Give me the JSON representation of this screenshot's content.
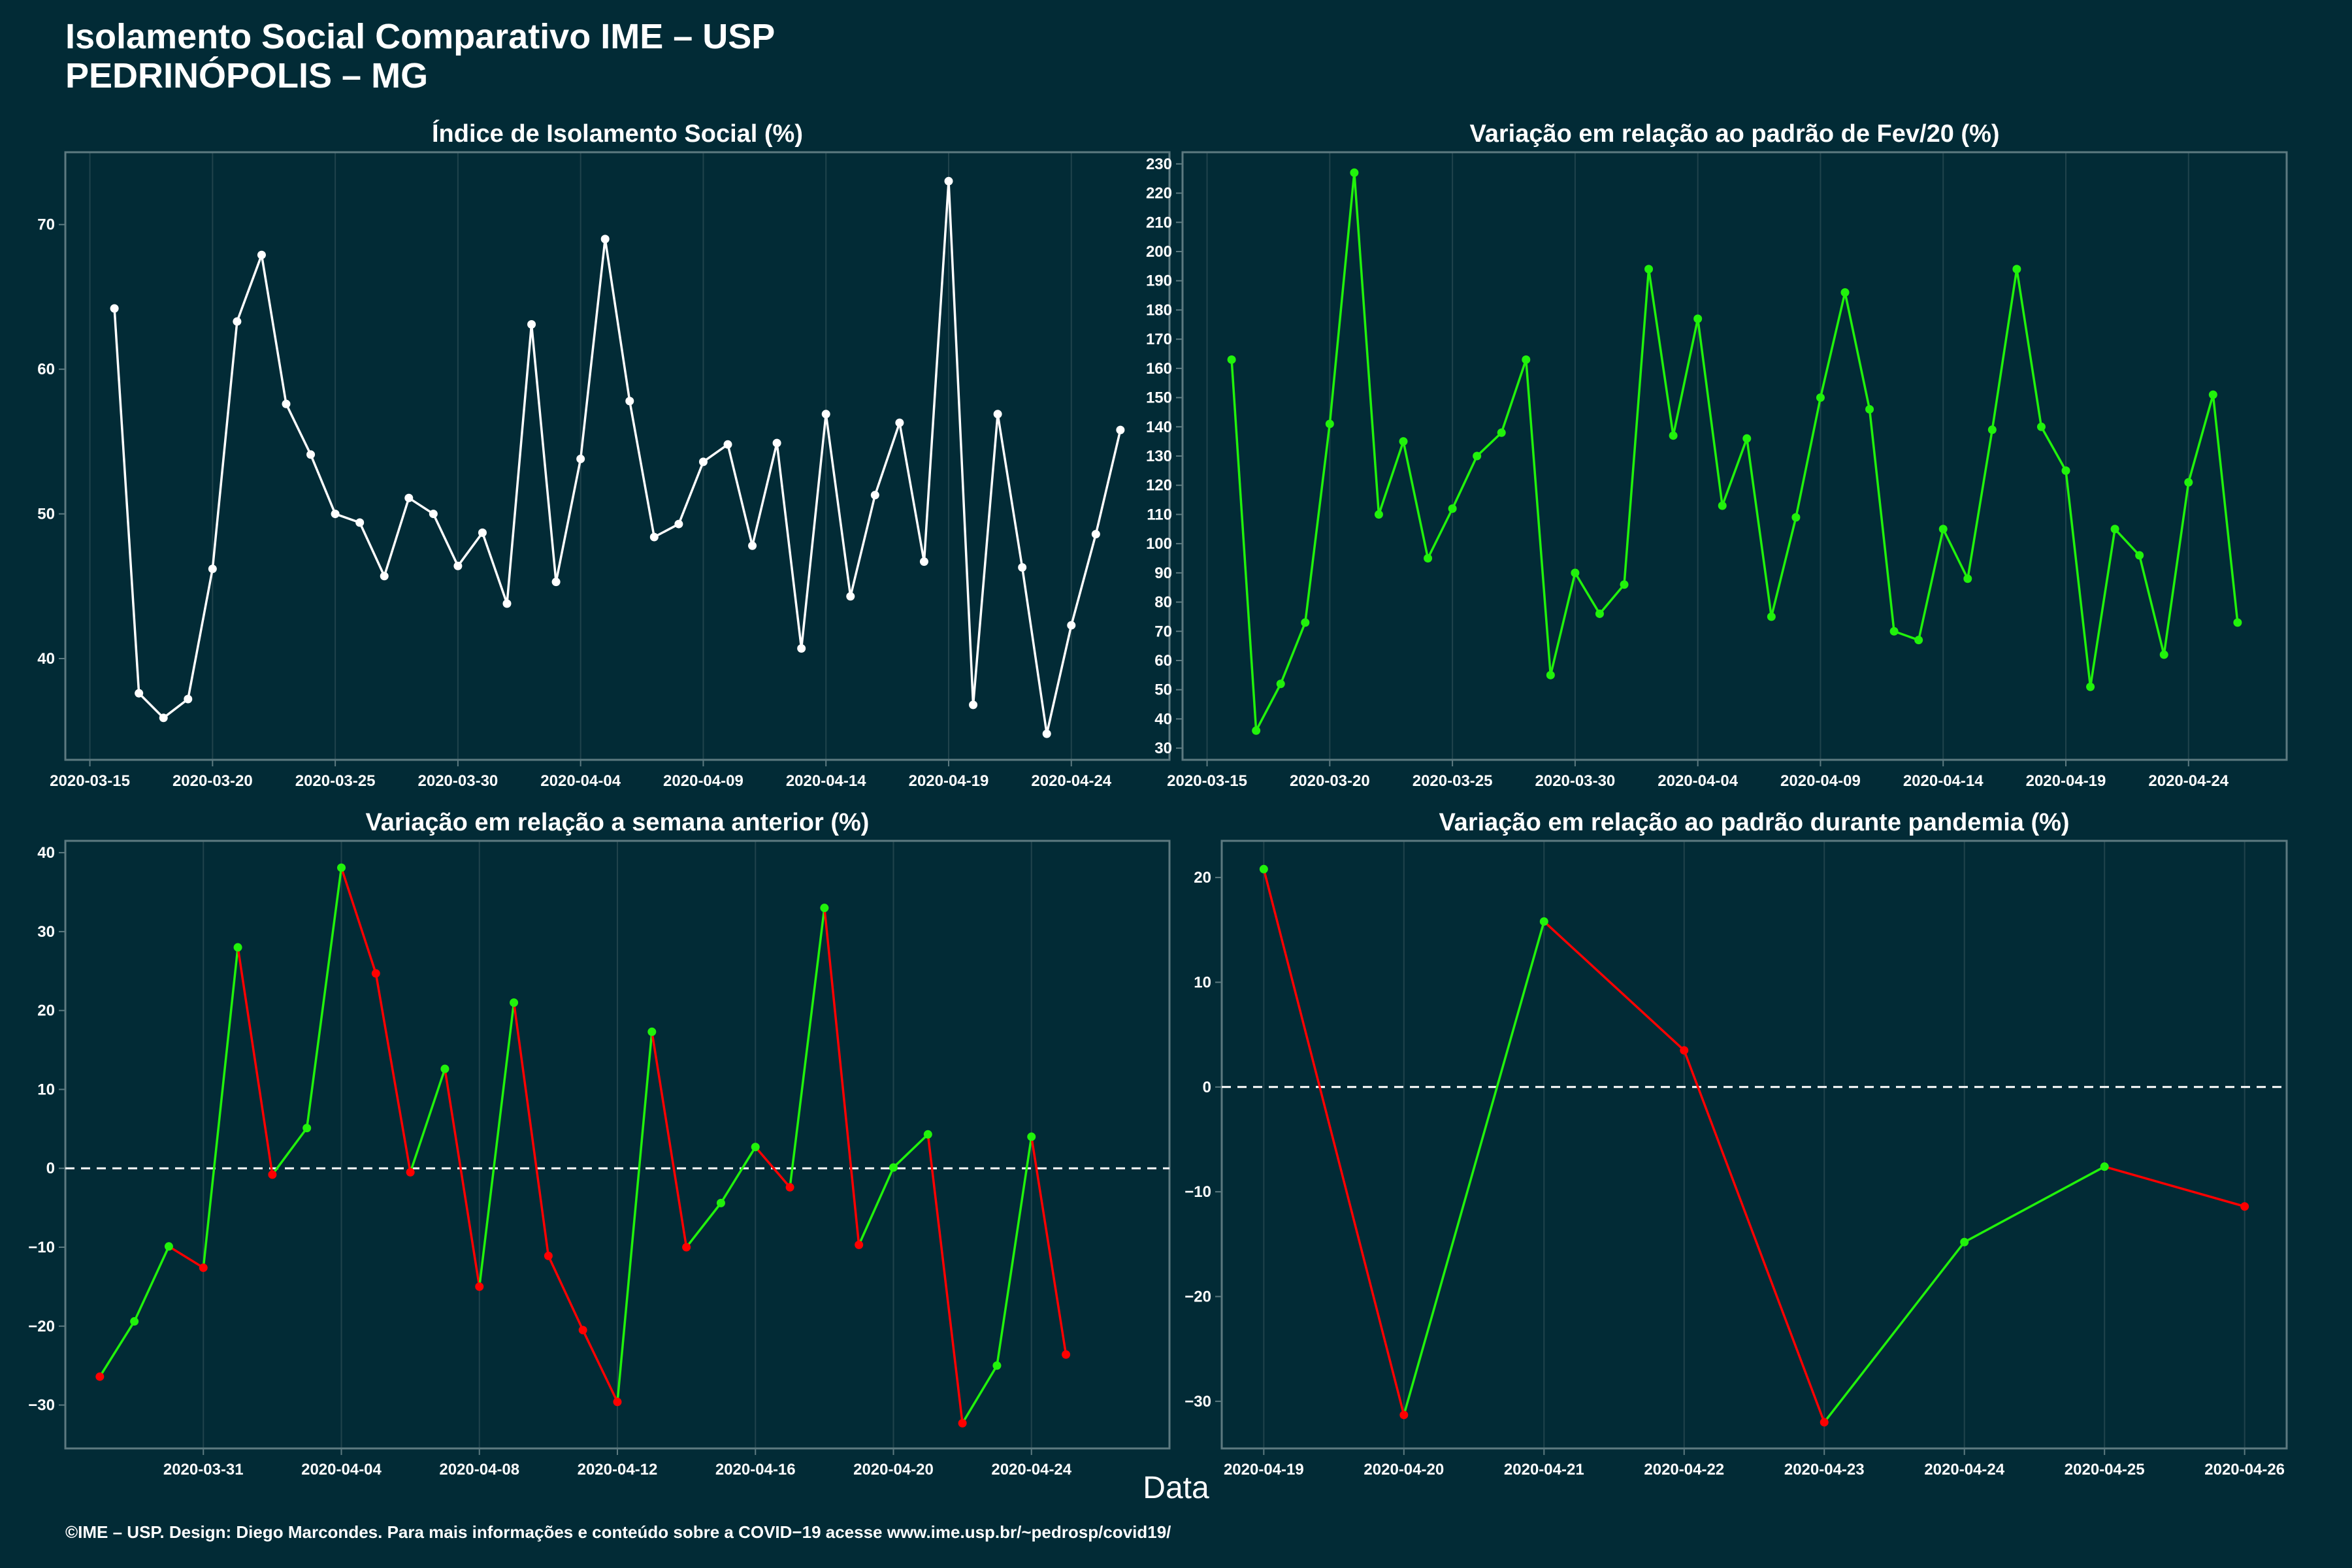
{
  "page": {
    "title_line1": "Isolamento Social Comparativo IME – USP",
    "title_line2": "PEDRINÓPOLIS – MG",
    "shared_xlabel": "Data",
    "footer": "©IME – USP. Design: Diego Marcondes. Para mais informações e conteúdo sobre a COVID−19 acesse www.ime.usp.br/~pedrosp/covid19/"
  },
  "colors": {
    "background": "#022b36",
    "panel_border": "#5d7a80",
    "grid": "#20434c",
    "positive": "#21f20b",
    "negative": "#ff0000",
    "neutral": "#ffffff"
  },
  "chart_data": [
    {
      "type": "line",
      "title": "Índice de Isolamento Social (%)",
      "color_mode": "white",
      "xlim": [
        "2020-03-14",
        "2020-04-28"
      ],
      "ylim": [
        33,
        75
      ],
      "x_ticks": [
        "2020-03-15",
        "2020-03-20",
        "2020-03-25",
        "2020-03-30",
        "2020-04-04",
        "2020-04-09",
        "2020-04-14",
        "2020-04-19",
        "2020-04-24"
      ],
      "y_ticks": [
        40,
        50,
        60,
        70
      ],
      "start_date": "2020-03-16",
      "values": [
        64.2,
        37.6,
        35.9,
        37.2,
        46.2,
        63.3,
        67.9,
        57.6,
        54.1,
        50.0,
        49.4,
        45.7,
        51.1,
        50.0,
        46.4,
        48.7,
        43.8,
        63.1,
        45.3,
        53.8,
        69.0,
        57.8,
        48.4,
        49.3,
        53.6,
        54.8,
        47.8,
        54.9,
        40.7,
        56.9,
        44.3,
        51.3,
        56.3,
        46.7,
        73.0,
        36.8,
        56.9,
        46.3,
        34.8,
        42.3,
        48.6,
        55.8
      ]
    },
    {
      "type": "line",
      "title": "Variação em relação ao padrão de Fev/20 (%)",
      "color_mode": "green",
      "xlim": [
        "2020-03-14",
        "2020-04-28"
      ],
      "ylim": [
        26,
        234
      ],
      "x_ticks": [
        "2020-03-15",
        "2020-03-20",
        "2020-03-25",
        "2020-03-30",
        "2020-04-04",
        "2020-04-09",
        "2020-04-14",
        "2020-04-19",
        "2020-04-24"
      ],
      "y_ticks": [
        30,
        40,
        50,
        60,
        70,
        80,
        90,
        100,
        110,
        120,
        130,
        140,
        150,
        160,
        170,
        180,
        190,
        200,
        210,
        220,
        230
      ],
      "start_date": "2020-03-16",
      "values": [
        163,
        36,
        52,
        73,
        141,
        227,
        110,
        135,
        95,
        112,
        130,
        138,
        163,
        55,
        90,
        76,
        86,
        194,
        137,
        177,
        113,
        136,
        75,
        109,
        150,
        186,
        146,
        70,
        67,
        105,
        88,
        139,
        194,
        140,
        125,
        51,
        105,
        96,
        62,
        121,
        151,
        73
      ]
    },
    {
      "type": "line",
      "title": "Variação em relação a semana anterior (%)",
      "color_mode": "sign",
      "reference_line": 0,
      "xlim": [
        "2020-03-27",
        "2020-04-28"
      ],
      "ylim": [
        -35.5,
        41.5
      ],
      "x_ticks": [
        "2020-03-31",
        "2020-04-04",
        "2020-04-08",
        "2020-04-12",
        "2020-04-16",
        "2020-04-20",
        "2020-04-24"
      ],
      "y_ticks": [
        -30,
        -20,
        -10,
        0,
        10,
        20,
        30,
        40
      ],
      "start_date": "2020-03-28",
      "values": [
        -26.4,
        -19.4,
        -9.9,
        -12.6,
        28.0,
        -0.8,
        5.1,
        38.1,
        24.7,
        -0.5,
        12.6,
        -15.0,
        21.0,
        -11.1,
        -20.5,
        -29.6,
        17.3,
        -10.0,
        -4.4,
        2.7,
        -2.4,
        33.0,
        -9.7,
        0.1,
        4.3,
        -32.3,
        -25.0,
        4.0,
        -23.6
      ]
    },
    {
      "type": "line",
      "title": "Variação em relação ao padrão durante pandemia (%)",
      "color_mode": "sign",
      "reference_line": 0,
      "xlim": [
        "2020-04-18.7",
        "2020-04-26.3"
      ],
      "ylim": [
        -34.5,
        23.5
      ],
      "x_ticks": [
        "2020-04-19",
        "2020-04-20",
        "2020-04-21",
        "2020-04-22",
        "2020-04-23",
        "2020-04-24",
        "2020-04-25",
        "2020-04-26"
      ],
      "y_ticks": [
        -30,
        -20,
        -10,
        0,
        10,
        20
      ],
      "start_date": "2020-04-19",
      "values": [
        20.8,
        -31.3,
        15.8,
        3.5,
        -32.0,
        -14.8,
        -7.6,
        -11.4
      ]
    }
  ]
}
